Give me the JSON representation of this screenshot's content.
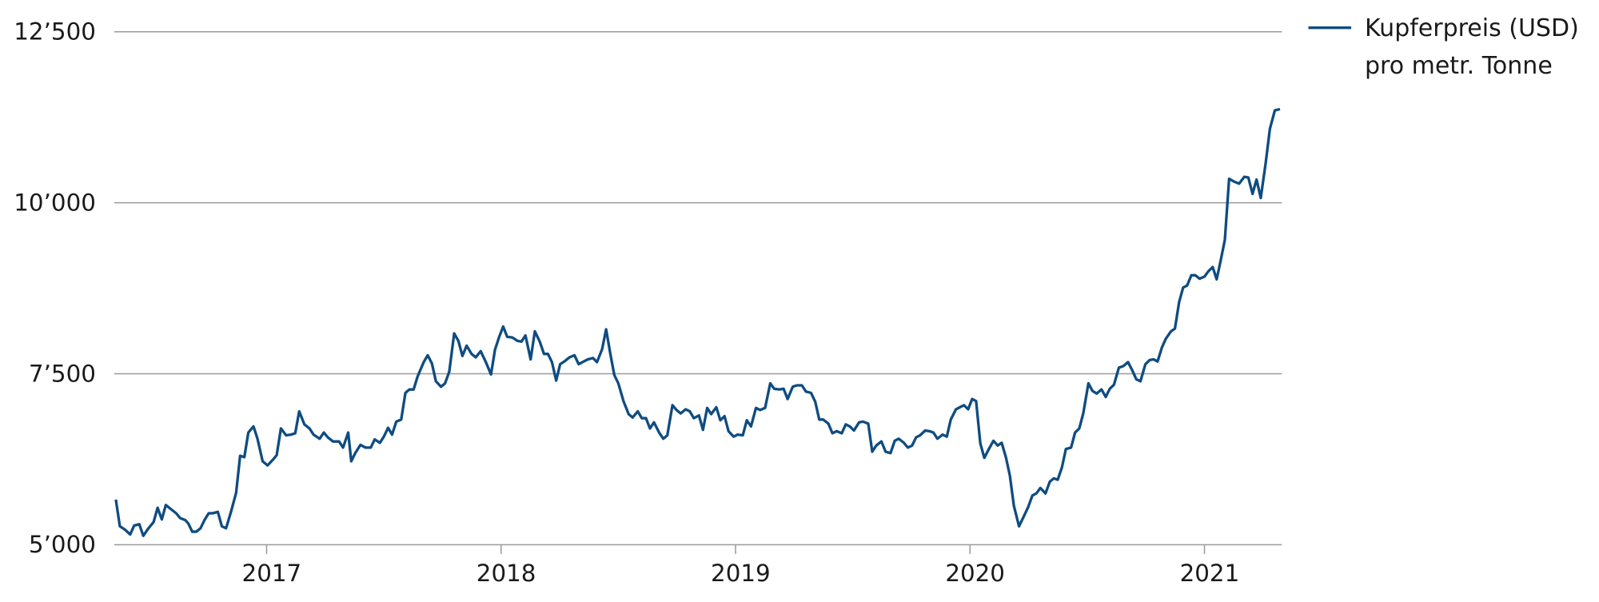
{
  "chart_data": {
    "type": "line",
    "x": [
      2016.357,
      2016.374,
      2016.396,
      2016.418,
      2016.435,
      2016.457,
      2016.474,
      2016.496,
      2016.518,
      2016.535,
      2016.553,
      2016.57,
      2016.592,
      2016.614,
      2016.631,
      2016.653,
      2016.666,
      2016.683,
      2016.7,
      2016.718,
      2016.735,
      2016.753,
      2016.77,
      2016.792,
      2016.809,
      2016.827,
      2016.848,
      2016.87,
      2016.887,
      2016.905,
      2016.922,
      2016.944,
      2016.961,
      2016.983,
      2017.004,
      2017.026,
      2017.043,
      2017.061,
      2017.083,
      2017.104,
      2017.122,
      2017.139,
      2017.161,
      2017.183,
      2017.2,
      2017.226,
      2017.244,
      2017.261,
      2017.283,
      2017.309,
      2017.326,
      2017.348,
      2017.361,
      2017.378,
      2017.4,
      2017.422,
      2017.444,
      2017.461,
      2017.483,
      2017.5,
      2017.518,
      2017.535,
      2017.553,
      2017.574,
      2017.592,
      2017.609,
      2017.627,
      2017.644,
      2017.67,
      2017.687,
      2017.705,
      2017.722,
      2017.744,
      2017.761,
      2017.779,
      2017.8,
      2017.818,
      2017.835,
      2017.853,
      2017.874,
      2017.892,
      2017.913,
      2017.935,
      2017.957,
      2017.974,
      2017.992,
      2018.009,
      2018.026,
      2018.048,
      2018.07,
      2018.087,
      2018.104,
      2018.126,
      2018.144,
      2018.165,
      2018.183,
      2018.2,
      2018.217,
      2018.235,
      2018.252,
      2018.27,
      2018.292,
      2018.313,
      2018.331,
      2018.353,
      2018.37,
      2018.392,
      2018.409,
      2018.431,
      2018.448,
      2018.466,
      2018.483,
      2018.5,
      2018.522,
      2018.544,
      2018.561,
      2018.583,
      2018.6,
      2018.618,
      2018.635,
      2018.652,
      2018.674,
      2018.692,
      2018.709,
      2018.731,
      2018.748,
      2018.766,
      2018.787,
      2018.805,
      2018.822,
      2018.844,
      2018.861,
      2018.879,
      2018.896,
      2018.918,
      2018.935,
      2018.953,
      2018.97,
      2018.992,
      2019.009,
      2019.031,
      2019.048,
      2019.066,
      2019.087,
      2019.105,
      2019.126,
      2019.148,
      2019.165,
      2019.187,
      2019.205,
      2019.222,
      2019.244,
      2019.261,
      2019.283,
      2019.3,
      2019.322,
      2019.34,
      2019.357,
      2019.374,
      2019.396,
      2019.413,
      2019.431,
      2019.453,
      2019.47,
      2019.487,
      2019.505,
      2019.527,
      2019.544,
      2019.566,
      2019.583,
      2019.6,
      2019.622,
      2019.64,
      2019.661,
      2019.679,
      2019.696,
      2019.718,
      2019.735,
      2019.753,
      2019.77,
      2019.787,
      2019.809,
      2019.827,
      2019.844,
      2019.861,
      2019.883,
      2019.901,
      2019.918,
      2019.94,
      2019.957,
      2019.974,
      2019.992,
      2020.009,
      2020.026,
      2020.044,
      2020.061,
      2020.079,
      2020.1,
      2020.118,
      2020.135,
      2020.153,
      2020.17,
      2020.187,
      2020.209,
      2020.226,
      2020.248,
      2020.266,
      2020.283,
      2020.3,
      2020.322,
      2020.34,
      2020.357,
      2020.374,
      2020.392,
      2020.409,
      2020.431,
      2020.448,
      2020.466,
      2020.483,
      2020.505,
      2020.522,
      2020.54,
      2020.561,
      2020.579,
      2020.596,
      2020.614,
      2020.635,
      2020.653,
      2020.674,
      2020.692,
      2020.709,
      2020.727,
      2020.748,
      2020.766,
      2020.783,
      2020.8,
      2020.818,
      2020.835,
      2020.857,
      2020.874,
      2020.892,
      2020.909,
      2020.926,
      2020.944,
      2020.961,
      2020.979,
      2021.0,
      2021.017,
      2021.035,
      2021.052,
      2021.07,
      2021.087,
      2021.105,
      2021.126,
      2021.148,
      2021.17,
      2021.187,
      2021.205,
      2021.222,
      2021.24,
      2021.261,
      2021.279,
      2021.3,
      2021.322
    ],
    "series": [
      {
        "name": "Kupferpreis (USD) pro metr. Tonne",
        "color": "#0f4c81",
        "values": [
          5660,
          5270,
          5220,
          5150,
          5280,
          5300,
          5130,
          5240,
          5330,
          5540,
          5370,
          5580,
          5520,
          5460,
          5390,
          5360,
          5310,
          5190,
          5190,
          5240,
          5360,
          5460,
          5460,
          5480,
          5270,
          5240,
          5480,
          5760,
          6300,
          6280,
          6640,
          6730,
          6550,
          6220,
          6160,
          6240,
          6310,
          6700,
          6600,
          6610,
          6630,
          6950,
          6760,
          6700,
          6610,
          6550,
          6640,
          6570,
          6510,
          6510,
          6420,
          6640,
          6220,
          6340,
          6460,
          6420,
          6420,
          6540,
          6490,
          6580,
          6710,
          6610,
          6800,
          6830,
          7220,
          7270,
          7270,
          7460,
          7670,
          7770,
          7650,
          7390,
          7310,
          7360,
          7530,
          8090,
          7980,
          7760,
          7910,
          7790,
          7740,
          7830,
          7670,
          7490,
          7850,
          8040,
          8190,
          8040,
          8030,
          7980,
          7970,
          8060,
          7710,
          8120,
          7970,
          7790,
          7790,
          7670,
          7400,
          7640,
          7680,
          7740,
          7770,
          7640,
          7680,
          7710,
          7730,
          7670,
          7860,
          8150,
          7790,
          7480,
          7360,
          7100,
          6910,
          6860,
          6950,
          6850,
          6850,
          6700,
          6790,
          6640,
          6550,
          6600,
          7040,
          6970,
          6920,
          6980,
          6950,
          6850,
          6890,
          6680,
          7000,
          6910,
          7010,
          6820,
          6880,
          6660,
          6580,
          6610,
          6600,
          6820,
          6730,
          7000,
          6970,
          7000,
          7360,
          7280,
          7270,
          7280,
          7130,
          7310,
          7330,
          7330,
          7240,
          7220,
          7090,
          6830,
          6830,
          6770,
          6630,
          6660,
          6630,
          6760,
          6730,
          6670,
          6790,
          6800,
          6770,
          6360,
          6450,
          6510,
          6360,
          6340,
          6520,
          6550,
          6490,
          6420,
          6450,
          6570,
          6600,
          6670,
          6660,
          6640,
          6550,
          6610,
          6580,
          6830,
          6980,
          7010,
          7040,
          6980,
          7130,
          7100,
          6480,
          6270,
          6390,
          6520,
          6450,
          6490,
          6280,
          6010,
          5570,
          5270,
          5390,
          5550,
          5720,
          5750,
          5830,
          5750,
          5920,
          5970,
          5950,
          6130,
          6400,
          6420,
          6640,
          6700,
          6920,
          7360,
          7250,
          7210,
          7270,
          7160,
          7280,
          7340,
          7590,
          7610,
          7670,
          7550,
          7420,
          7390,
          7640,
          7700,
          7710,
          7680,
          7880,
          8010,
          8120,
          8160,
          8550,
          8760,
          8790,
          8940,
          8940,
          8890,
          8920,
          9000,
          9060,
          8880,
          9170,
          9460,
          10350,
          10310,
          10280,
          10380,
          10370,
          10130,
          10340,
          10070,
          10580,
          11080,
          11350,
          11370
        ]
      }
    ],
    "xlim": [
      2016.35,
      2021.33
    ],
    "xticks": [
      2017,
      2018,
      2019,
      2020,
      2021
    ],
    "ylim": [
      5000,
      12500
    ],
    "yticks": [
      {
        "value": 5000,
        "label": "5’000"
      },
      {
        "value": 7500,
        "label": "7’500"
      },
      {
        "value": 10000,
        "label": "10’000"
      },
      {
        "value": 12500,
        "label": "12’500"
      }
    ],
    "grid": true,
    "legend": "top-right"
  }
}
